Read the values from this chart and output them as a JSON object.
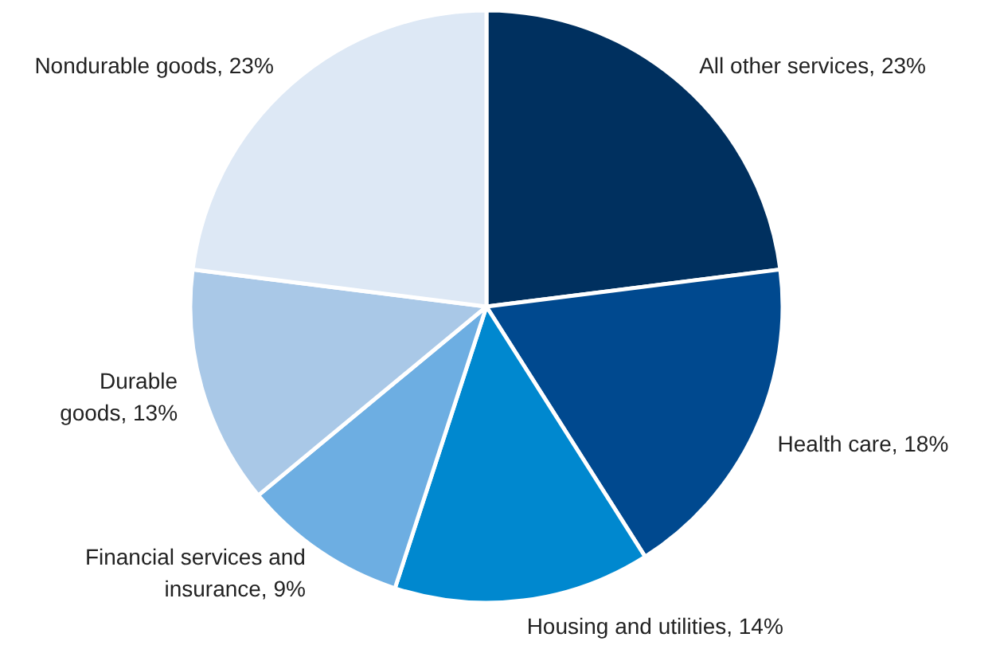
{
  "chart_data": {
    "type": "pie",
    "categories": [
      "All other services, 23%",
      "Health care, 18%",
      "Housing and utilities, 14%",
      "Financial services and insurance, 9%",
      "Durable goods, 13%",
      "Nondurable goods, 23%"
    ],
    "values": [
      23,
      18,
      14,
      9,
      13,
      23
    ],
    "colors": [
      "#00305f",
      "#00498f",
      "#0088cf",
      "#6daee2",
      "#a9c8e7",
      "#dde8f5"
    ]
  }
}
